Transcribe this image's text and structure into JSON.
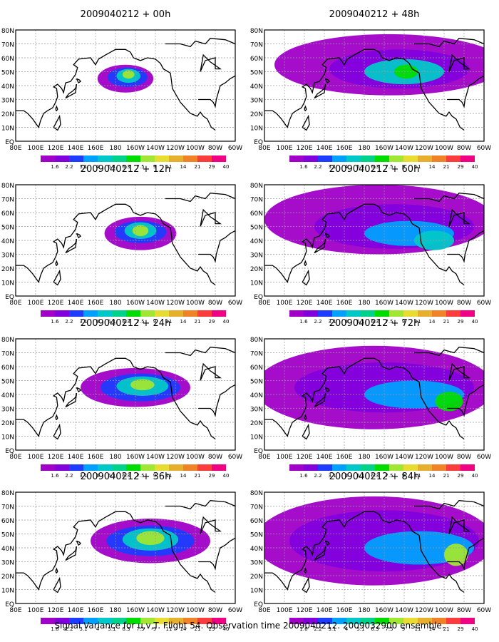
{
  "figure": {
    "caption": "Signal Variance for u,v,T. Flight 54. Observation time 2009040212. 2009032900 ensemble."
  },
  "chart_data": {
    "type": "heatmap",
    "panels": [
      {
        "title": "2009040212 + 00h"
      },
      {
        "title": "2009040212 + 12h"
      },
      {
        "title": "2009040212 + 24h"
      },
      {
        "title": "2009040212 + 36h"
      },
      {
        "title": "2009040212 + 48h"
      },
      {
        "title": "2009040212 + 60h"
      },
      {
        "title": "2009040212 + 72h"
      },
      {
        "title": "2009040212 + 84h"
      }
    ],
    "x_ticks": [
      "80E",
      "100E",
      "120E",
      "140E",
      "160E",
      "180",
      "160W",
      "140W",
      "120W",
      "100W",
      "80W",
      "60W"
    ],
    "y_ticks": [
      "EQ",
      "10N",
      "20N",
      "30N",
      "40N",
      "50N",
      "60N",
      "70N",
      "80N"
    ],
    "xlim_deg_east": [
      80,
      300
    ],
    "ylim_deg_north": [
      0,
      80
    ],
    "grid": true,
    "colorbar": {
      "levels": [
        "1.6",
        "2.2",
        "3.1",
        "4",
        "5.1",
        "6.3",
        "7.5",
        "9",
        "11",
        "14",
        "21",
        "29",
        "40"
      ],
      "colors": [
        "#a000c8",
        "#8200dc",
        "#1e3cff",
        "#00a0ff",
        "#00c8c8",
        "#00d28c",
        "#00dc00",
        "#a0e632",
        "#e6dc32",
        "#e6af2d",
        "#f08228",
        "#fa3c3c",
        "#f00082"
      ]
    }
  }
}
